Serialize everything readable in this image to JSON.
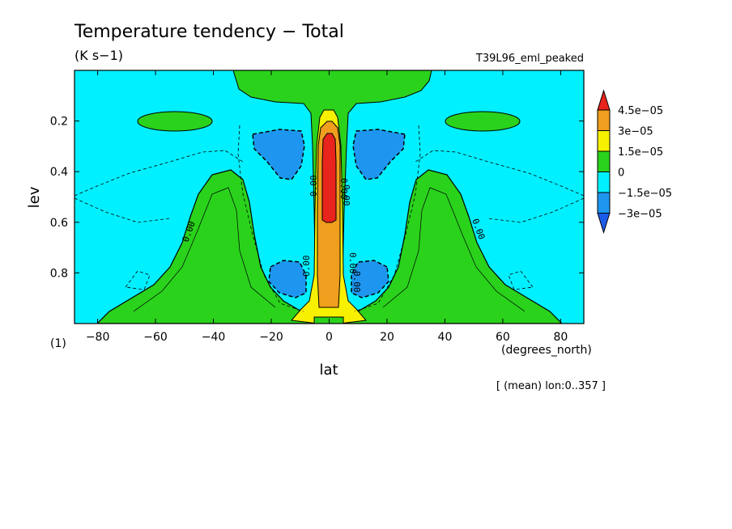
{
  "chart_data": {
    "type": "heatmap",
    "title": "Temperature tendency − Total",
    "units": "(K s−1)",
    "run_label": "T39L96_eml_peaked",
    "xlabel": "lat",
    "ylabel": "lev",
    "x_units": "(degrees_north)",
    "panel_label": "(1)",
    "footnote": "[ (mean) lon:0..357 ]",
    "xlim": [
      -88,
      88
    ],
    "ylim": [
      1.0,
      0.0
    ],
    "x_ticks": [
      "−80",
      "−60",
      "−40",
      "−20",
      "0",
      "20",
      "40",
      "60",
      "80"
    ],
    "x_tick_values": [
      -80,
      -60,
      -40,
      -20,
      0,
      20,
      40,
      60,
      80
    ],
    "y_ticks": [
      "0.2",
      "0.4",
      "0.6",
      "0.8"
    ],
    "y_tick_values": [
      0.2,
      0.4,
      0.6,
      0.8
    ],
    "colorbar": {
      "labels": [
        "4.5e−05",
        "3e−05",
        "1.5e−05",
        "0",
        "−1.5e−05",
        "−3e−05"
      ],
      "levels": [
        4.5e-05,
        3e-05,
        1.5e-05,
        0,
        -1.5e-05,
        -3e-05
      ],
      "colors": [
        "#e8241c",
        "#f09e1e",
        "#f7f000",
        "#2ad21c",
        "#00f0ff",
        "#1e96f0",
        "#1c5ce8"
      ]
    },
    "contour_labels": [
      "0.00",
      "0.00",
      "0.00",
      "0.00",
      "0.00",
      "0.00",
      "0.00",
      "0.00"
    ],
    "field_bands": [
      {
        "band": "0 to 1.5e-05",
        "color": "#2ad21c",
        "region": "model top cap near equator and both subtropical tongues"
      },
      {
        "band": "-1.5e-05 to 0",
        "color": "#00f0ff",
        "region": "background"
      },
      {
        "band": "-3e-05 to -1.5e-05",
        "color": "#1e96f0",
        "region": "off-equatorial lobes near 0.25-0.4 and 0.8-0.9"
      },
      {
        "band": "1.5e-05 to 3e-05",
        "color": "#f7f000",
        "region": "equatorial column edges"
      },
      {
        "band": "3e-05 to 4.5e-05",
        "color": "#f09e1e",
        "region": "equatorial column 0.2-0.97"
      },
      {
        "band": "> 4.5e-05",
        "color": "#e8241c",
        "region": "equatorial core 0.25-0.6"
      }
    ]
  }
}
